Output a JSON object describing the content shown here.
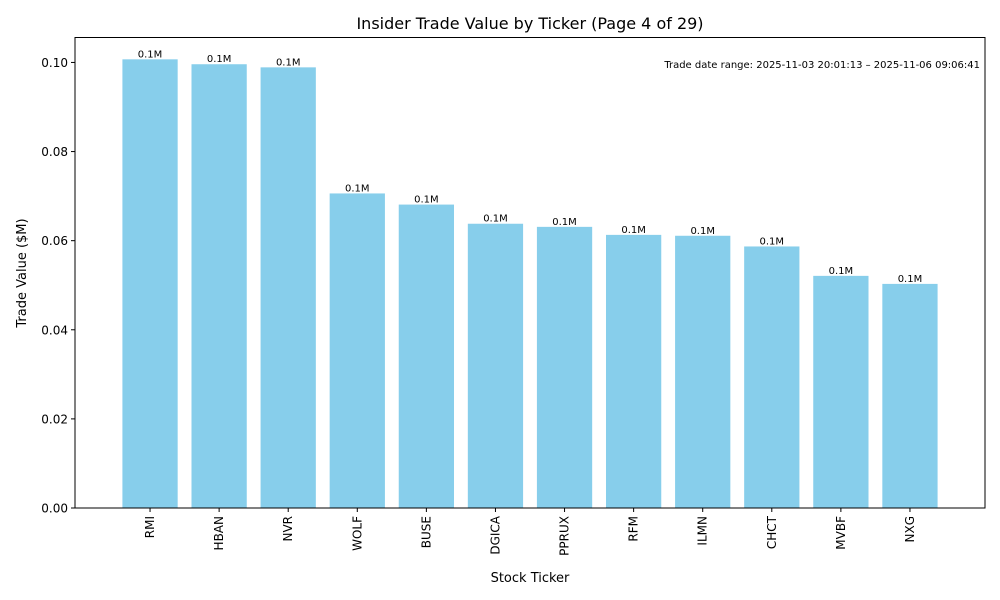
{
  "chart_data": {
    "type": "bar",
    "title": "Insider Trade Value by Ticker (Page 4 of 29)",
    "xlabel": "Stock Ticker",
    "ylabel": "Trade Value ($M)",
    "categories": [
      "RMI",
      "HBAN",
      "NVR",
      "WOLF",
      "BUSE",
      "DGICA",
      "PPRUX",
      "RFM",
      "ILMN",
      "CHCT",
      "MVBF",
      "NXG"
    ],
    "values": [
      0.1007,
      0.0996,
      0.0989,
      0.0706,
      0.0681,
      0.0638,
      0.0631,
      0.0613,
      0.0611,
      0.0587,
      0.0521,
      0.0503
    ],
    "data_labels": [
      "0.1M",
      "0.1M",
      "0.1M",
      "0.1M",
      "0.1M",
      "0.1M",
      "0.1M",
      "0.1M",
      "0.1M",
      "0.1M",
      "0.1M",
      "0.1M"
    ],
    "ylim": [
      0,
      0.1056
    ],
    "yticks": [
      "0.00",
      "0.02",
      "0.04",
      "0.06",
      "0.08",
      "0.10"
    ],
    "ytick_values": [
      0,
      0.02,
      0.04,
      0.06,
      0.08,
      0.1
    ],
    "annotation": "Trade date range: 2025-11-03 20:01:13 – 2025-11-06 09:06:41",
    "bar_color": "#87ceeb",
    "grid": false
  }
}
